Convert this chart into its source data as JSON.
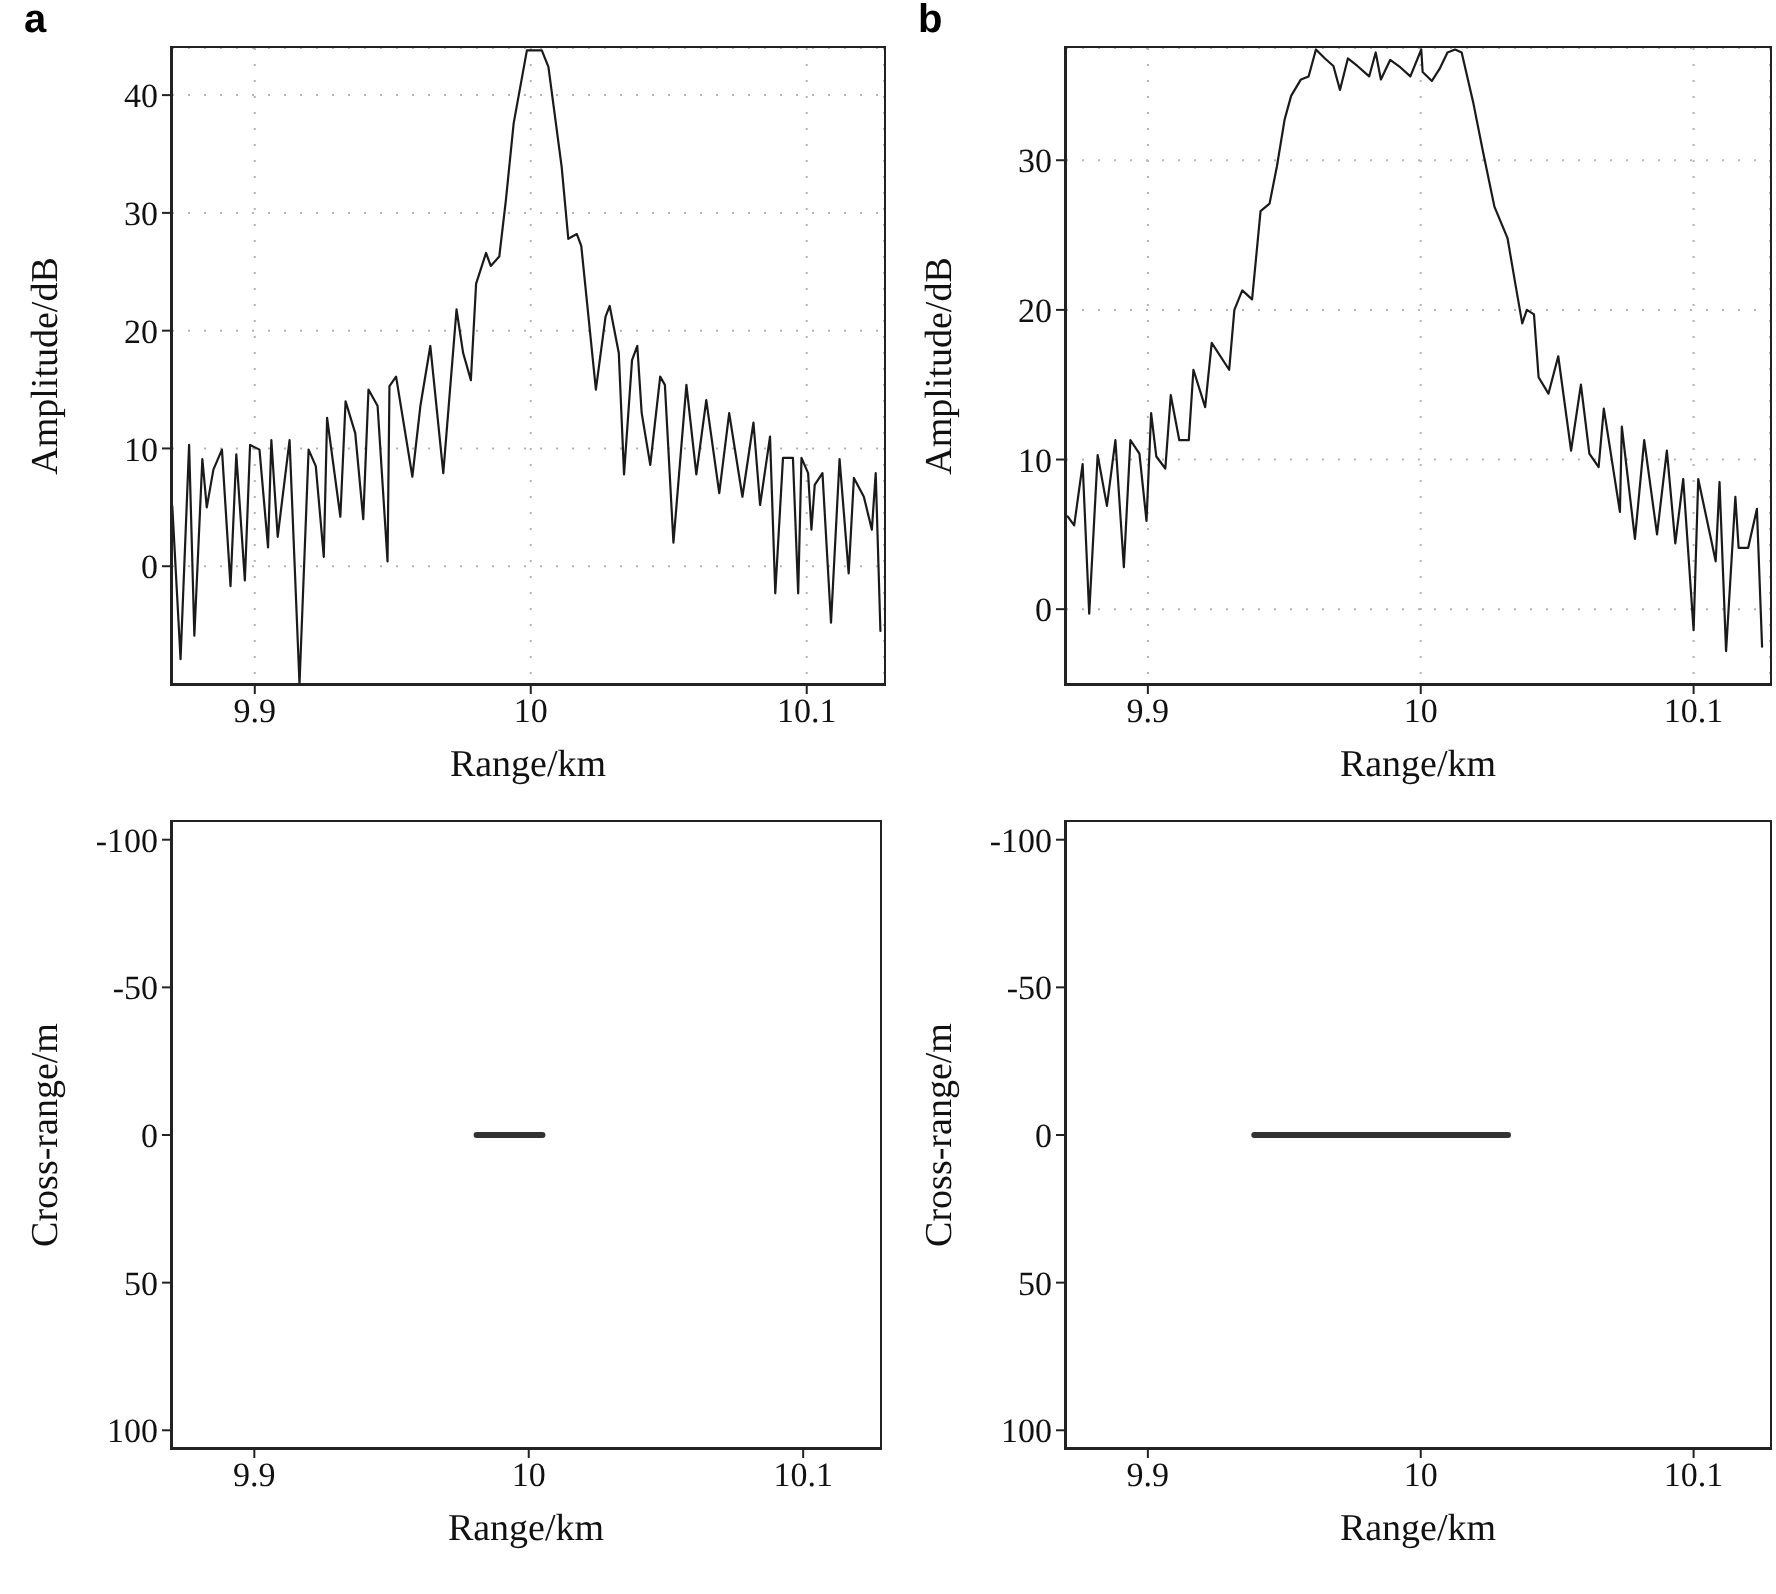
{
  "chart_data": [
    {
      "type": "line",
      "title": "a",
      "xlabel": "Range/km",
      "ylabel": "Amplitude/dB",
      "xlim": [
        9.87,
        10.128
      ],
      "xticks": [
        9.9,
        10,
        10.1
      ],
      "ylim": [
        -10,
        44
      ],
      "yticks": [
        0,
        10,
        20,
        30,
        40
      ],
      "grid": true,
      "marker": "none",
      "color": "#1a1a1a",
      "x": [
        9.8701,
        9.8731,
        9.8762,
        9.8781,
        9.881,
        9.8826,
        9.885,
        9.8881,
        9.8912,
        9.8933,
        9.8964,
        9.8983,
        9.9017,
        9.9048,
        9.906,
        9.9083,
        9.9126,
        9.9162,
        9.9195,
        9.9221,
        9.925,
        9.9262,
        9.931,
        9.9329,
        9.9364,
        9.9393,
        9.9412,
        9.9445,
        9.9481,
        9.9488,
        9.9512,
        9.9571,
        9.96,
        9.9636,
        9.9683,
        9.9731,
        9.9755,
        9.9783,
        9.9802,
        9.9838,
        9.9855,
        9.9886,
        9.991,
        9.9938,
        9.9962,
        9.9986,
        10.0017,
        10.004,
        10.0064,
        10.0112,
        10.0136,
        10.0167,
        10.0183,
        10.0236,
        10.0271,
        10.0286,
        10.0319,
        10.0338,
        10.0367,
        10.0386,
        10.0402,
        10.0433,
        10.0469,
        10.0486,
        10.0517,
        10.0564,
        10.06,
        10.0636,
        10.0683,
        10.0719,
        10.0767,
        10.0807,
        10.0831,
        10.0867,
        10.0886,
        10.0914,
        10.095,
        10.0969,
        10.0981,
        10.1005,
        10.1017,
        10.1029,
        10.1057,
        10.1088,
        10.1119,
        10.1152,
        10.1171,
        10.1207,
        10.1236,
        10.125,
        10.1267
      ],
      "values": [
        5.1,
        -7.9,
        10.3,
        -5.9,
        9.1,
        5.0,
        8.2,
        9.9,
        -1.7,
        9.5,
        -1.2,
        10.3,
        9.9,
        1.6,
        10.7,
        2.5,
        10.7,
        -10,
        9.9,
        8.5,
        0.8,
        12.6,
        4.2,
        14.0,
        11.3,
        4.0,
        15.0,
        13.6,
        0.4,
        15.3,
        16.1,
        7.6,
        13.6,
        18.7,
        7.9,
        21.8,
        18.1,
        15.8,
        24.0,
        26.6,
        25.5,
        26.3,
        31.1,
        37.6,
        40.7,
        43.8,
        43.8,
        43.8,
        42.4,
        33.9,
        27.8,
        28.2,
        27.2,
        15.0,
        21.2,
        22.1,
        18.1,
        7.8,
        17.5,
        18.7,
        13.0,
        8.6,
        16.1,
        15.4,
        2.0,
        15.4,
        7.8,
        14.1,
        6.2,
        13.0,
        5.9,
        12.2,
        5.2,
        11.0,
        -2.3,
        9.2,
        9.2,
        -2.3,
        9.2,
        7.9,
        3.1,
        6.9,
        7.9,
        -4.8,
        9.1,
        -0.6,
        7.5,
        5.9,
        3.1,
        7.9,
        -5.5
      ]
    },
    {
      "type": "line",
      "title": "b",
      "xlabel": "Range/km",
      "ylabel": "Amplitude/dB",
      "xlim": [
        9.87,
        10.128
      ],
      "xticks": [
        9.9,
        10,
        10.1
      ],
      "ylim": [
        -5,
        37.5
      ],
      "yticks": [
        0,
        10,
        20,
        30
      ],
      "grid": true,
      "marker": "none",
      "color": "#1a1a1a",
      "x": [
        9.8706,
        9.873,
        9.8761,
        9.8785,
        9.8816,
        9.885,
        9.8881,
        9.8912,
        9.8936,
        9.8969,
        9.8995,
        9.9012,
        9.9031,
        9.9064,
        9.9084,
        9.9115,
        9.915,
        9.9167,
        9.921,
        9.9234,
        9.9298,
        9.9317,
        9.9346,
        9.9382,
        9.9413,
        9.9446,
        9.9473,
        9.9501,
        9.9525,
        9.9561,
        9.9589,
        9.9616,
        9.9649,
        9.968,
        9.9704,
        9.9733,
        9.9768,
        9.9811,
        9.9835,
        9.9854,
        9.9888,
        9.9926,
        9.9962,
        10.0002,
        10.0007,
        10.0041,
        10.0069,
        10.0098,
        10.0126,
        10.015,
        10.0193,
        10.0229,
        10.027,
        10.0318,
        10.0348,
        10.0372,
        10.0389,
        10.0415,
        10.0432,
        10.0468,
        10.0504,
        10.0551,
        10.0587,
        10.0618,
        10.0652,
        10.0671,
        10.073,
        10.0737,
        10.0785,
        10.0819,
        10.0866,
        10.0902,
        10.0933,
        10.0962,
        10.1,
        10.1017,
        10.1081,
        10.1095,
        10.1119,
        10.1153,
        10.1165,
        10.12,
        10.1232,
        10.1251
      ],
      "values": [
        6.2,
        5.6,
        9.7,
        -0.3,
        10.3,
        6.9,
        11.3,
        2.8,
        11.3,
        10.4,
        5.9,
        13.1,
        10.2,
        9.4,
        14.3,
        11.3,
        11.3,
        16.0,
        13.5,
        17.8,
        16.0,
        20.0,
        21.3,
        20.7,
        26.6,
        27.1,
        29.6,
        32.7,
        34.3,
        35.4,
        35.6,
        37.4,
        36.8,
        36.3,
        34.7,
        36.8,
        36.3,
        35.6,
        37.2,
        35.4,
        36.7,
        36.2,
        35.6,
        37.4,
        35.9,
        35.3,
        36.1,
        37.2,
        37.4,
        37.2,
        33.8,
        30.5,
        26.9,
        24.8,
        21.6,
        19.1,
        20.0,
        19.7,
        15.5,
        14.4,
        16.9,
        10.6,
        15.0,
        10.4,
        9.5,
        13.4,
        6.5,
        12.2,
        4.7,
        11.3,
        5.0,
        10.6,
        4.4,
        8.7,
        -1.4,
        8.7,
        3.2,
        8.5,
        -2.8,
        7.5,
        4.1,
        4.1,
        6.7,
        -2.5
      ]
    },
    {
      "type": "line",
      "xlabel": "Range/km",
      "ylabel": "Cross-range/m",
      "xlim": [
        9.87,
        10.128
      ],
      "xticks": [
        9.9,
        10,
        10.1
      ],
      "ylim": [
        106,
        -106
      ],
      "yticks": [
        -100,
        -50,
        0,
        50,
        100
      ],
      "grid": false,
      "marker": "none",
      "color": "#333333",
      "x": [
        9.981,
        10.005
      ],
      "values": [
        0,
        0
      ]
    },
    {
      "type": "line",
      "xlabel": "Range/km",
      "ylabel": "Cross-range/m",
      "xlim": [
        9.87,
        10.128
      ],
      "xticks": [
        9.9,
        10,
        10.1
      ],
      "ylim": [
        106,
        -106
      ],
      "yticks": [
        -100,
        -50,
        0,
        50,
        100
      ],
      "grid": false,
      "marker": "none",
      "color": "#333333",
      "x": [
        9.939,
        10.032
      ],
      "values": [
        0,
        0
      ]
    }
  ]
}
